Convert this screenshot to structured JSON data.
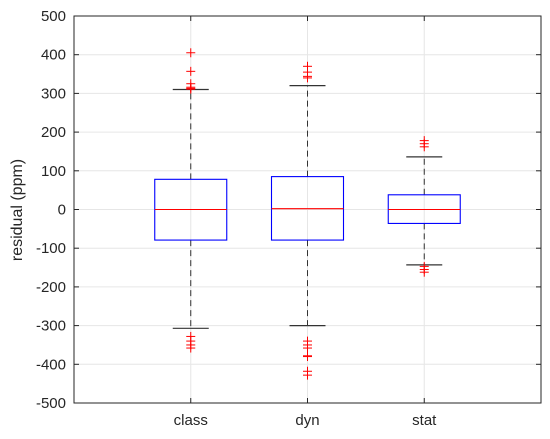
{
  "chart_data": {
    "type": "box",
    "title": "",
    "xlabel": "",
    "ylabel": "residual (ppm)",
    "ylim": [
      -500,
      500
    ],
    "yticks": [
      -500,
      -400,
      -300,
      -200,
      -100,
      0,
      100,
      200,
      300,
      400,
      500
    ],
    "categories": [
      "class",
      "dyn",
      "stat"
    ],
    "grid": true,
    "colors": {
      "box": "#0000ff",
      "median": "#ff0000",
      "whisker": "#333333",
      "outlier": "#ff0000",
      "grid": "#e6e6e6",
      "axis": "#262626"
    },
    "boxes": [
      {
        "name": "class",
        "whisker_low": -307,
        "q1": -79,
        "median": 0,
        "q3": 78,
        "whisker_high": 310,
        "outliers": [
          405,
          357,
          325,
          316,
          313,
          311,
          -328,
          -340,
          -350,
          -358
        ]
      },
      {
        "name": "dyn",
        "whisker_low": -300,
        "q1": -79,
        "median": 2,
        "q3": 85,
        "whisker_high": 320,
        "outliers": [
          370,
          355,
          344,
          340,
          -340,
          -350,
          -358,
          -378,
          -380,
          -418,
          -428
        ]
      },
      {
        "name": "stat",
        "whisker_low": -143,
        "q1": -36,
        "median": 0,
        "q3": 38,
        "whisker_high": 136,
        "outliers": [
          178,
          170,
          162,
          -147,
          -155,
          -162
        ]
      }
    ]
  }
}
